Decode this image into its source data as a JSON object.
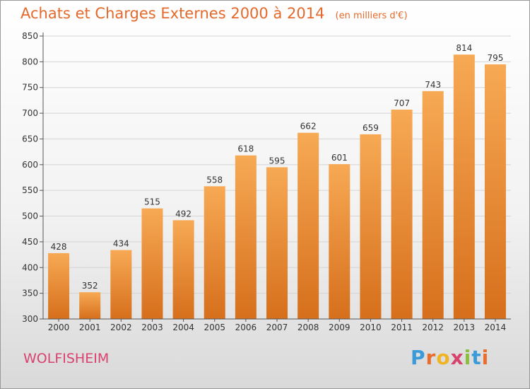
{
  "header": {
    "title": "Achats et Charges Externes 2000 à 2014",
    "unit": "(en milliers d'€)"
  },
  "footer": {
    "commune": "WOLFISHEIM",
    "brand": "Proxiti",
    "brand_letters": [
      {
        "ch": "P",
        "color": "#3b9ad8"
      },
      {
        "ch": "r",
        "color": "#e96d2c"
      },
      {
        "ch": "o",
        "color": "#f0b323"
      },
      {
        "ch": "x",
        "color": "#d9426e"
      },
      {
        "ch": "i",
        "color": "#8cbe3f"
      },
      {
        "ch": "t",
        "color": "#3b9ad8"
      },
      {
        "ch": "i",
        "color": "#e96d2c"
      }
    ]
  },
  "colors": {
    "title": "#e4692b",
    "commune": "#d9426e",
    "bar_top": "#f7a954",
    "bar_bottom": "#d66f1c",
    "grid": "#d4d4d4"
  },
  "chart_data": {
    "type": "bar",
    "categories": [
      "2000",
      "2001",
      "2002",
      "2003",
      "2004",
      "2005",
      "2006",
      "2007",
      "2008",
      "2009",
      "2010",
      "2011",
      "2012",
      "2013",
      "2014"
    ],
    "values": [
      428,
      352,
      434,
      515,
      492,
      558,
      618,
      595,
      662,
      601,
      659,
      707,
      743,
      814,
      795
    ],
    "ylim": [
      300,
      850
    ],
    "yticks": [
      300,
      350,
      400,
      450,
      500,
      550,
      600,
      650,
      700,
      750,
      800,
      850
    ],
    "grid": true,
    "data_labels": true
  }
}
